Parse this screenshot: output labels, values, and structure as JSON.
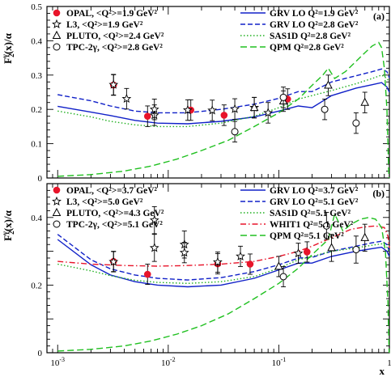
{
  "chart_data": [
    {
      "type": "line",
      "panel_label": "(a)",
      "ylabel": "F2γ(x)/α",
      "ylabel_main": "F",
      "ylabel_sub": "2",
      "ylabel_sup": "γ",
      "ylabel_rest": "(x)/α",
      "xscale": "log",
      "xlim": [
        0.0008,
        1.0
      ],
      "ylim": [
        0,
        0.5
      ],
      "yticks": [
        "0",
        "0.1",
        "0.2",
        "0.3",
        "0.4",
        "0.5"
      ],
      "legend_left": [
        "OPAL, <Q²>=1.9 GeV²",
        "L3, <Q²>=1.9 GeV²",
        "PLUTO, <Q²>=2.4 GeV²",
        "TPC-2γ, <Q²>=2.8 GeV²"
      ],
      "legend_right": [
        "GRV LO Q²=1.9 GeV²",
        "GRV LO Q²=2.8 GeV²",
        "SAS1D Q²=2.8 GeV²",
        "QPM Q²=2.8 GeV²"
      ],
      "points": [
        {
          "name": "OPAL",
          "marker": "filled-circle",
          "color": "#e8142a",
          "data": [
            [
              0.0032,
              0.271
            ],
            [
              0.0065,
              0.18
            ],
            [
              0.016,
              0.198
            ],
            [
              0.032,
              0.183
            ],
            [
              0.12,
              0.23
            ]
          ]
        },
        {
          "name": "L3",
          "marker": "star",
          "color": "#000000",
          "data": [
            [
              0.0032,
              0.272
            ],
            [
              0.0042,
              0.231
            ],
            [
              0.0075,
              0.183
            ],
            [
              0.0075,
              0.2
            ],
            [
              0.015,
              0.198
            ],
            [
              0.025,
              0.197
            ],
            [
              0.04,
              0.201
            ],
            [
              0.06,
              0.205
            ],
            [
              0.08,
              0.19
            ]
          ]
        },
        {
          "name": "PLUTO",
          "marker": "open-triangle",
          "color": "#000000",
          "data": [
            [
              0.06,
              0.205
            ],
            [
              0.11,
              0.224
            ],
            [
              0.28,
              0.27
            ],
            [
              0.6,
              0.22
            ]
          ]
        },
        {
          "name": "TPC-2γ",
          "marker": "open-circle",
          "color": "#000000",
          "data": [
            [
              0.04,
              0.135
            ],
            [
              0.11,
              0.235
            ],
            [
              0.26,
              0.2
            ],
            [
              0.5,
              0.16
            ]
          ]
        }
      ],
      "series": [
        {
          "name": "GRV LO Q²=1.9 GeV²",
          "style": "solid",
          "color": "#1020c8",
          "x": [
            0.001,
            0.002,
            0.003,
            0.005,
            0.008,
            0.015,
            0.03,
            0.06,
            0.1,
            0.15,
            0.2,
            0.3,
            0.5,
            0.7,
            0.85,
            0.95,
            1.0
          ],
          "y": [
            0.209,
            0.192,
            0.182,
            0.168,
            0.16,
            0.158,
            0.165,
            0.178,
            0.195,
            0.21,
            0.205,
            0.24,
            0.262,
            0.272,
            0.278,
            0.265,
            0.25
          ]
        },
        {
          "name": "GRV LO Q²=2.8 GeV²",
          "style": "dashed",
          "color": "#1020c8",
          "x": [
            0.001,
            0.002,
            0.003,
            0.005,
            0.008,
            0.015,
            0.03,
            0.06,
            0.1,
            0.15,
            0.2,
            0.3,
            0.5,
            0.7,
            0.85,
            0.95,
            1.0
          ],
          "y": [
            0.243,
            0.225,
            0.21,
            0.195,
            0.19,
            0.19,
            0.2,
            0.215,
            0.232,
            0.252,
            0.252,
            0.28,
            0.298,
            0.31,
            0.318,
            0.31,
            0.292
          ]
        },
        {
          "name": "SAS1D Q²=2.8 GeV²",
          "style": "dotted",
          "color": "#20b020",
          "x": [
            0.001,
            0.002,
            0.003,
            0.005,
            0.008,
            0.015,
            0.03,
            0.06,
            0.1,
            0.15,
            0.2,
            0.3,
            0.5,
            0.7,
            0.85,
            0.95,
            1.0
          ],
          "y": [
            0.195,
            0.178,
            0.165,
            0.155,
            0.15,
            0.15,
            0.16,
            0.18,
            0.205,
            0.23,
            0.24,
            0.255,
            0.275,
            0.29,
            0.3,
            0.29,
            0.28
          ]
        },
        {
          "name": "QPM Q²=2.8 GeV²",
          "style": "dash",
          "color": "#20c020",
          "x": [
            0.001,
            0.002,
            0.004,
            0.007,
            0.012,
            0.02,
            0.035,
            0.06,
            0.1,
            0.15,
            0.2,
            0.25,
            0.28,
            0.32,
            0.4,
            0.5,
            0.6,
            0.7,
            0.8,
            0.85,
            0.9,
            0.95,
            0.99
          ],
          "y": [
            0.005,
            0.01,
            0.02,
            0.035,
            0.055,
            0.08,
            0.11,
            0.15,
            0.19,
            0.23,
            0.27,
            0.3,
            0.32,
            0.29,
            0.31,
            0.34,
            0.365,
            0.385,
            0.395,
            0.38,
            0.32,
            0.2,
            0.0
          ]
        }
      ]
    },
    {
      "type": "line",
      "panel_label": "(b)",
      "ylabel": "F2γ(x)/α",
      "ylabel_main": "F",
      "ylabel_sub": "2",
      "ylabel_sup": "γ",
      "ylabel_rest": "(x)/α",
      "xlabel": "x",
      "xscale": "log",
      "xlim": [
        0.0008,
        1.0
      ],
      "ylim": [
        0,
        0.5
      ],
      "xticks": [
        {
          "base": "10",
          "exp": "-3",
          "value": 0.001
        },
        {
          "base": "10",
          "exp": "-2",
          "value": 0.01
        },
        {
          "base": "10",
          "exp": "-1",
          "value": 0.1
        },
        {
          "base": "1",
          "exp": "",
          "value": 1.0
        }
      ],
      "yticks": [
        "0",
        "0.2",
        "0.4"
      ],
      "legend_left": [
        "OPAL, <Q²>=3.7 GeV²",
        "L3, <Q²>=5.0 GeV²",
        "PLUTO, <Q²>=4.3 GeV²",
        "TPC-2γ, <Q²>=5.1 GeV²"
      ],
      "legend_right": [
        "GRV LO Q²=3.7 GeV²",
        "GRV LO Q²=5.1 GeV²",
        "SAS1D Q²=5.1 GeV²",
        "WHIT1 Q²=5.1 GeV²",
        "QPM Q²=5.1 GeV²"
      ],
      "points": [
        {
          "name": "OPAL",
          "marker": "filled-circle",
          "color": "#e8142a",
          "data": [
            [
              0.0032,
              0.27
            ],
            [
              0.0065,
              0.232
            ],
            [
              0.028,
              0.263
            ],
            [
              0.055,
              0.262
            ],
            [
              0.18,
              0.298
            ]
          ]
        },
        {
          "name": "L3",
          "marker": "star",
          "color": "#000000",
          "data": [
            [
              0.0032,
              0.269
            ],
            [
              0.0075,
              0.392
            ],
            [
              0.0075,
              0.31
            ],
            [
              0.014,
              0.32
            ],
            [
              0.014,
              0.296
            ],
            [
              0.028,
              0.268
            ],
            [
              0.045,
              0.285
            ],
            [
              0.15,
              0.294
            ]
          ]
        },
        {
          "name": "PLUTO",
          "marker": "open-triangle",
          "color": "#000000",
          "data": [
            [
              0.1,
              0.255
            ],
            [
              0.3,
              0.31
            ],
            [
              0.6,
              0.34
            ]
          ]
        },
        {
          "name": "TPC-2γ",
          "marker": "open-circle",
          "color": "#000000",
          "data": [
            [
              0.11,
              0.225
            ],
            [
              0.27,
              0.375
            ],
            [
              0.5,
              0.305
            ]
          ]
        }
      ],
      "series": [
        {
          "name": "GRV LO Q²=3.7 GeV²",
          "style": "solid",
          "color": "#1020c8",
          "x": [
            0.001,
            0.002,
            0.003,
            0.005,
            0.008,
            0.015,
            0.03,
            0.06,
            0.1,
            0.15,
            0.2,
            0.3,
            0.5,
            0.7,
            0.85,
            0.95,
            1.0
          ],
          "y": [
            0.335,
            0.26,
            0.23,
            0.21,
            0.2,
            0.195,
            0.2,
            0.22,
            0.245,
            0.265,
            0.265,
            0.285,
            0.3,
            0.308,
            0.312,
            0.3,
            0.285
          ]
        },
        {
          "name": "GRV LO Q²=5.1 GeV²",
          "style": "dashed",
          "color": "#1020c8",
          "x": [
            0.001,
            0.002,
            0.003,
            0.005,
            0.008,
            0.015,
            0.03,
            0.06,
            0.1,
            0.15,
            0.2,
            0.3,
            0.5,
            0.7,
            0.85,
            0.95,
            1.0
          ],
          "y": [
            0.35,
            0.275,
            0.248,
            0.23,
            0.22,
            0.215,
            0.222,
            0.24,
            0.26,
            0.28,
            0.282,
            0.3,
            0.315,
            0.325,
            0.33,
            0.32,
            0.3
          ]
        },
        {
          "name": "SAS1D Q²=5.1 GeV²",
          "style": "dotted",
          "color": "#20b020",
          "x": [
            0.001,
            0.002,
            0.003,
            0.005,
            0.008,
            0.015,
            0.03,
            0.06,
            0.1,
            0.15,
            0.2,
            0.3,
            0.5,
            0.7,
            0.85,
            0.95,
            1.0
          ],
          "y": [
            0.262,
            0.242,
            0.228,
            0.214,
            0.208,
            0.205,
            0.21,
            0.225,
            0.25,
            0.275,
            0.285,
            0.3,
            0.31,
            0.318,
            0.322,
            0.312,
            0.298
          ]
        },
        {
          "name": "WHIT1 Q²=5.1 GeV²",
          "style": "dashdot",
          "color": "#e8142a",
          "x": [
            0.001,
            0.002,
            0.004,
            0.008,
            0.015,
            0.03,
            0.06,
            0.1,
            0.15,
            0.2,
            0.3,
            0.45,
            0.6,
            0.75,
            0.9,
            0.97,
            1.0
          ],
          "y": [
            0.27,
            0.262,
            0.258,
            0.256,
            0.258,
            0.262,
            0.27,
            0.285,
            0.3,
            0.315,
            0.34,
            0.365,
            0.372,
            0.375,
            0.37,
            0.345,
            0.31
          ]
        },
        {
          "name": "QPM Q²=5.1 GeV²",
          "style": "dash",
          "color": "#20c020",
          "x": [
            0.001,
            0.002,
            0.004,
            0.007,
            0.012,
            0.02,
            0.035,
            0.06,
            0.1,
            0.15,
            0.2,
            0.28,
            0.32,
            0.38,
            0.45,
            0.55,
            0.65,
            0.75,
            0.85,
            0.92,
            0.97,
            0.995
          ],
          "y": [
            0.005,
            0.01,
            0.02,
            0.035,
            0.055,
            0.08,
            0.115,
            0.16,
            0.205,
            0.25,
            0.29,
            0.335,
            0.41,
            0.36,
            0.38,
            0.395,
            0.4,
            0.395,
            0.37,
            0.3,
            0.15,
            0.0
          ]
        }
      ]
    }
  ]
}
